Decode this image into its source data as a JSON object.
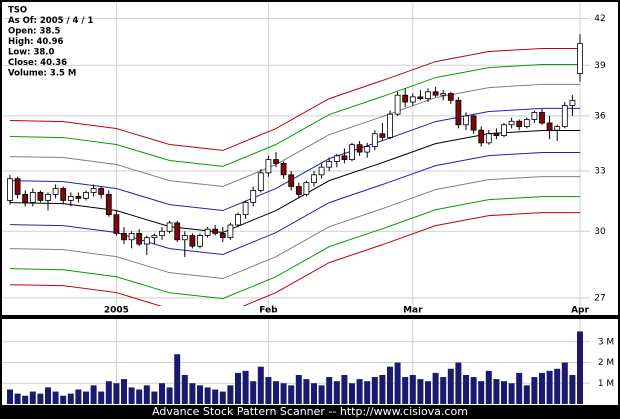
{
  "chart_data": {
    "type": "candlestick",
    "info_lines": [
      "TSO",
      "As Of: 2005 / 4 / 1",
      "Open: 38.5",
      "High: 40.96",
      "Low: 38.0",
      "Close: 40.36",
      "Volume: 3.5 M"
    ],
    "footer": "Advance Stock Pattern Scanner -- http://www.cisiova.com",
    "categories": [
      null,
      null,
      null,
      null,
      null,
      null,
      null,
      null,
      null,
      null,
      null,
      null,
      null,
      null,
      "2005",
      null,
      null,
      null,
      null,
      null,
      null,
      null,
      null,
      null,
      null,
      null,
      null,
      null,
      null,
      null,
      null,
      null,
      null,
      null,
      "Feb",
      null,
      null,
      null,
      null,
      null,
      null,
      null,
      null,
      null,
      null,
      null,
      null,
      null,
      null,
      null,
      null,
      null,
      null,
      "Mar",
      null,
      null,
      null,
      null,
      null,
      null,
      null,
      null,
      null,
      null,
      null,
      null,
      null,
      null,
      null,
      null,
      null,
      null,
      null,
      null,
      null,
      "Apr"
    ],
    "open": [
      31.5,
      32.6,
      31.8,
      31.4,
      31.9,
      31.5,
      31.8,
      32.1,
      31.5,
      31.7,
      31.6,
      31.9,
      32.1,
      31.8,
      30.8,
      29.9,
      29.6,
      29.9,
      29.4,
      29.7,
      29.8,
      30.0,
      30.4,
      29.6,
      29.8,
      29.3,
      29.8,
      30.1,
      29.9,
      29.7,
      30.3,
      30.8,
      31.4,
      32.0,
      32.9,
      33.6,
      33.4,
      32.8,
      32.2,
      31.8,
      32.4,
      32.8,
      33.2,
      33.5,
      33.8,
      33.6,
      34.4,
      34.0,
      34.3,
      35.0,
      34.8,
      36.1,
      37.2,
      36.8,
      37.1,
      37.0,
      37.4,
      37.2,
      37.3,
      36.9,
      35.5,
      36.0,
      35.2,
      34.5,
      35.0,
      34.9,
      35.5,
      35.7,
      35.4,
      35.8,
      36.2,
      35.6,
      35.2,
      35.4,
      36.6,
      38.5
    ],
    "high": [
      32.8,
      32.7,
      32.0,
      32.1,
      32.0,
      31.9,
      32.3,
      32.2,
      31.9,
      31.9,
      32.0,
      32.3,
      32.2,
      32.0,
      31.0,
      30.2,
      30.0,
      30.1,
      29.8,
      29.9,
      30.2,
      30.5,
      30.5,
      30.0,
      29.9,
      29.9,
      30.2,
      30.3,
      30.2,
      30.4,
      30.9,
      31.5,
      32.2,
      33.1,
      33.8,
      34.0,
      33.5,
      33.0,
      32.4,
      32.5,
      33.0,
      33.4,
      33.7,
      33.9,
      34.2,
      34.5,
      34.6,
      34.5,
      35.2,
      35.6,
      36.3,
      37.4,
      37.6,
      37.3,
      37.5,
      37.6,
      37.7,
      37.5,
      37.4,
      37.1,
      36.2,
      36.1,
      35.4,
      35.2,
      35.3,
      35.6,
      35.9,
      35.8,
      35.9,
      36.3,
      36.4,
      36.0,
      35.5,
      36.8,
      37.2,
      40.96
    ],
    "low": [
      31.3,
      31.6,
      31.2,
      31.2,
      31.4,
      31.0,
      31.6,
      31.3,
      31.2,
      31.4,
      31.5,
      31.7,
      31.6,
      30.7,
      29.8,
      29.4,
      29.2,
      29.3,
      28.9,
      29.4,
      29.6,
      29.9,
      29.5,
      28.8,
      29.2,
      29.2,
      29.7,
      29.8,
      29.5,
      29.6,
      30.2,
      30.6,
      31.2,
      31.9,
      32.7,
      33.2,
      32.6,
      32.0,
      31.6,
      31.7,
      32.2,
      32.6,
      33.0,
      33.2,
      33.4,
      33.5,
      33.8,
      33.7,
      34.1,
      34.6,
      34.7,
      36.0,
      36.5,
      36.6,
      36.9,
      36.8,
      37.1,
      36.9,
      36.7,
      35.3,
      35.2,
      35.0,
      34.3,
      34.4,
      34.7,
      34.8,
      35.3,
      35.2,
      35.3,
      35.6,
      35.5,
      34.7,
      34.6,
      35.3,
      36.0,
      38.0
    ],
    "close": [
      32.6,
      31.8,
      31.4,
      31.9,
      31.5,
      31.8,
      32.1,
      31.5,
      31.7,
      31.6,
      31.9,
      32.1,
      31.8,
      30.8,
      29.9,
      29.6,
      29.9,
      29.4,
      29.7,
      29.8,
      30.0,
      30.4,
      29.6,
      29.8,
      29.3,
      29.8,
      30.1,
      29.9,
      29.7,
      30.3,
      30.8,
      31.4,
      32.0,
      32.9,
      33.6,
      33.4,
      32.8,
      32.2,
      31.8,
      32.4,
      32.8,
      33.2,
      33.5,
      33.8,
      33.6,
      34.4,
      34.0,
      34.3,
      35.0,
      34.8,
      36.1,
      37.2,
      36.8,
      37.1,
      37.0,
      37.4,
      37.2,
      37.3,
      36.9,
      35.5,
      36.0,
      35.2,
      34.5,
      35.0,
      34.9,
      35.5,
      35.7,
      35.4,
      35.8,
      36.2,
      35.6,
      35.2,
      35.4,
      36.6,
      36.9,
      40.36
    ],
    "up_color": "#ffffff",
    "down_color": "#7a0a0a",
    "ylim": [
      26.7,
      42.9
    ],
    "yticks": [
      27,
      30,
      33,
      36,
      39,
      42
    ],
    "log_scale": true,
    "grid": true,
    "bands": {
      "x": [
        0,
        7,
        14,
        21,
        28,
        35,
        42,
        49,
        56,
        63,
        70,
        75
      ],
      "series": [
        {
          "color": "#c00000",
          "values": [
            35.74,
            35.68,
            35.29,
            34.41,
            34.09,
            35.29,
            37.0,
            38.07,
            39.23,
            39.86,
            40.05,
            40.05
          ]
        },
        {
          "color": "#00a000",
          "values": [
            34.85,
            34.79,
            34.41,
            33.55,
            33.24,
            34.41,
            36.08,
            37.12,
            38.25,
            38.86,
            39.05,
            39.05
          ]
        },
        {
          "color": "#808080",
          "values": [
            33.76,
            33.71,
            33.34,
            32.5,
            32.2,
            33.34,
            34.95,
            35.96,
            37.06,
            37.65,
            37.84,
            37.84
          ]
        },
        {
          "color": "#2020c0",
          "values": [
            32.5,
            32.45,
            32.1,
            31.29,
            31.0,
            32.1,
            33.65,
            34.62,
            35.68,
            36.25,
            36.43,
            36.43
          ]
        },
        {
          "color": "#000000",
          "values": [
            31.39,
            31.34,
            31.0,
            30.22,
            29.94,
            31.0,
            32.5,
            33.44,
            34.46,
            35.01,
            35.18,
            35.18
          ]
        },
        {
          "color": "#2020c0",
          "values": [
            30.32,
            30.27,
            29.94,
            29.19,
            28.92,
            29.94,
            31.39,
            32.3,
            33.28,
            33.81,
            33.98,
            33.98
          ]
        },
        {
          "color": "#808080",
          "values": [
            29.19,
            29.14,
            28.82,
            28.1,
            27.84,
            28.82,
            30.22,
            31.09,
            32.04,
            32.55,
            32.71,
            32.71
          ]
        },
        {
          "color": "#00a000",
          "values": [
            28.28,
            28.23,
            27.92,
            27.22,
            26.97,
            27.92,
            29.28,
            30.12,
            31.04,
            31.54,
            31.69,
            31.69
          ]
        },
        {
          "color": "#c00000",
          "values": [
            27.57,
            27.53,
            27.23,
            26.54,
            26.3,
            27.23,
            28.55,
            29.37,
            30.27,
            30.75,
            30.9,
            30.9
          ]
        }
      ]
    },
    "volume": {
      "color": "#1a1a6e",
      "ylim": [
        0,
        4.1
      ],
      "yticks": [
        {
          "value": 1,
          "label": "1 M"
        },
        {
          "value": 2,
          "label": "2 M"
        },
        {
          "value": 3,
          "label": "3 M"
        }
      ],
      "values": [
        0.7,
        0.5,
        0.4,
        0.6,
        0.5,
        0.8,
        0.6,
        0.4,
        0.5,
        0.7,
        0.6,
        0.9,
        0.6,
        1.1,
        1.0,
        1.2,
        0.8,
        0.7,
        0.9,
        0.6,
        1.0,
        0.8,
        2.4,
        1.4,
        1.0,
        0.9,
        0.8,
        0.7,
        0.6,
        0.9,
        1.5,
        1.6,
        1.1,
        1.8,
        1.3,
        1.1,
        1.0,
        0.9,
        1.4,
        1.2,
        1.0,
        0.9,
        1.3,
        1.1,
        1.4,
        1.0,
        1.2,
        1.1,
        1.3,
        1.4,
        1.8,
        2.0,
        1.3,
        1.4,
        1.2,
        1.1,
        1.5,
        1.3,
        1.7,
        2.0,
        1.4,
        1.3,
        1.1,
        1.6,
        1.2,
        1.1,
        1.0,
        1.5,
        0.9,
        1.3,
        1.5,
        1.6,
        1.7,
        2.0,
        1.4,
        3.5
      ]
    }
  }
}
